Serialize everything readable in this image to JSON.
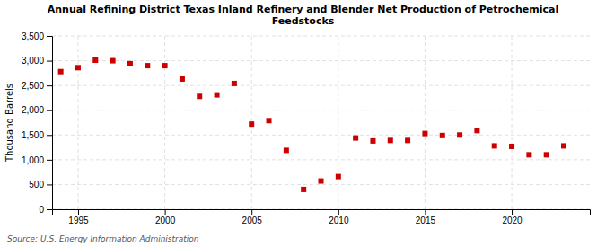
{
  "chart_data": {
    "type": "scatter",
    "title": "Annual Refining District Texas Inland Refinery and Blender Net Production of Petrochemical\nFeedstocks",
    "ylabel": "Thousand Barrels",
    "source": "Source: U.S. Energy Information Administration",
    "x": [
      1994,
      1995,
      1996,
      1997,
      1998,
      1999,
      2000,
      2001,
      2002,
      2003,
      2004,
      2005,
      2006,
      2007,
      2008,
      2009,
      2010,
      2011,
      2012,
      2013,
      2014,
      2015,
      2016,
      2017,
      2018,
      2019,
      2020,
      2021,
      2022,
      2023
    ],
    "values": [
      2780,
      2860,
      3010,
      3000,
      2940,
      2900,
      2900,
      2630,
      2280,
      2310,
      2540,
      1720,
      1790,
      1190,
      400,
      570,
      660,
      1440,
      1380,
      1390,
      1390,
      1530,
      1490,
      1500,
      1590,
      1280,
      1270,
      1100,
      1100,
      1280
    ],
    "color": "#cc0000",
    "marker": "square",
    "xlim": [
      1993.5,
      2024.5
    ],
    "ylim": [
      0,
      3500
    ],
    "xticks": [
      1995,
      2000,
      2005,
      2010,
      2015,
      2020
    ],
    "yticks": [
      0,
      500,
      {
        "value": 1000,
        "label": "1,000"
      },
      {
        "value": 1500,
        "label": "1,500"
      },
      {
        "value": 2000,
        "label": "2,000"
      },
      {
        "value": 2500,
        "label": "2,500"
      },
      {
        "value": 3000,
        "label": "3,000"
      },
      {
        "value": 3500,
        "label": "3,500"
      }
    ],
    "grid": true
  }
}
